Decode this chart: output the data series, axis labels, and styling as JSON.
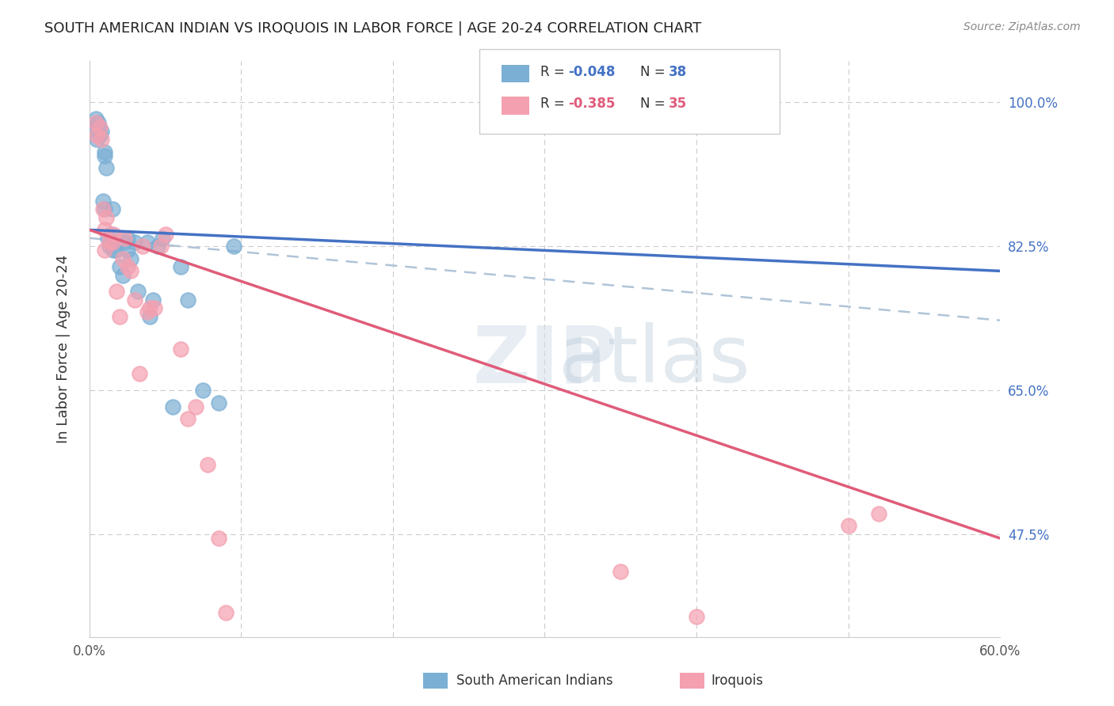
{
  "title": "SOUTH AMERICAN INDIAN VS IROQUOIS IN LABOR FORCE | AGE 20-24 CORRELATION CHART",
  "source": "Source: ZipAtlas.com",
  "xlabel_bottom": "",
  "ylabel": "In Labor Force | Age 20-24",
  "xmin": 0.0,
  "xmax": 0.6,
  "ymin": 0.35,
  "ymax": 1.05,
  "yticks": [
    1.0,
    0.825,
    0.65,
    0.475
  ],
  "ytick_labels": [
    "100.0%",
    "82.5%",
    "65.0%",
    "47.5%"
  ],
  "xticks": [
    0.0,
    0.1,
    0.2,
    0.3,
    0.4,
    0.5,
    0.6
  ],
  "xtick_labels": [
    "0.0%",
    "",
    "",
    "",
    "",
    "",
    "60.0%"
  ],
  "legend_r1": "R = -0.048",
  "legend_n1": "N = 38",
  "legend_r2": "R = -0.385",
  "legend_n2": "N = 35",
  "blue_color": "#7bafd4",
  "pink_color": "#f4a0b0",
  "blue_line_color": "#4472c4",
  "pink_line_color": "#e05c7a",
  "dashed_line_color": "#b0c4d8",
  "watermark": "ZIPatlas",
  "blue_dots_x": [
    0.003,
    0.004,
    0.005,
    0.006,
    0.006,
    0.007,
    0.008,
    0.009,
    0.01,
    0.01,
    0.01,
    0.011,
    0.012,
    0.013,
    0.014,
    0.015,
    0.016,
    0.017,
    0.018,
    0.02,
    0.022,
    0.023,
    0.025,
    0.025,
    0.027,
    0.03,
    0.032,
    0.038,
    0.04,
    0.042,
    0.045,
    0.048,
    0.055,
    0.06,
    0.065,
    0.075,
    0.085,
    0.095
  ],
  "blue_dots_y": [
    0.97,
    0.98,
    0.955,
    0.975,
    0.97,
    0.96,
    0.965,
    0.88,
    0.87,
    0.935,
    0.94,
    0.92,
    0.835,
    0.825,
    0.84,
    0.87,
    0.82,
    0.83,
    0.82,
    0.8,
    0.79,
    0.83,
    0.82,
    0.835,
    0.81,
    0.83,
    0.77,
    0.83,
    0.74,
    0.76,
    0.825,
    0.835,
    0.63,
    0.8,
    0.76,
    0.65,
    0.635,
    0.825
  ],
  "pink_dots_x": [
    0.004,
    0.005,
    0.007,
    0.008,
    0.009,
    0.01,
    0.01,
    0.011,
    0.013,
    0.015,
    0.016,
    0.018,
    0.02,
    0.022,
    0.023,
    0.025,
    0.027,
    0.03,
    0.033,
    0.035,
    0.038,
    0.04,
    0.043,
    0.047,
    0.05,
    0.06,
    0.065,
    0.07,
    0.078,
    0.085,
    0.09,
    0.35,
    0.4,
    0.5,
    0.52
  ],
  "pink_dots_y": [
    0.975,
    0.96,
    0.97,
    0.955,
    0.87,
    0.82,
    0.845,
    0.86,
    0.83,
    0.83,
    0.84,
    0.77,
    0.74,
    0.81,
    0.835,
    0.8,
    0.795,
    0.76,
    0.67,
    0.825,
    0.745,
    0.75,
    0.75,
    0.825,
    0.84,
    0.7,
    0.615,
    0.63,
    0.56,
    0.47,
    0.38,
    0.43,
    0.375,
    0.485,
    0.5
  ],
  "blue_trend_x": [
    0.0,
    0.6
  ],
  "blue_trend_y": [
    0.845,
    0.795
  ],
  "pink_trend_x": [
    0.0,
    0.6
  ],
  "pink_trend_y": [
    0.845,
    0.47
  ],
  "dashed_trend_x": [
    0.0,
    0.6
  ],
  "dashed_trend_y": [
    0.835,
    0.735
  ]
}
